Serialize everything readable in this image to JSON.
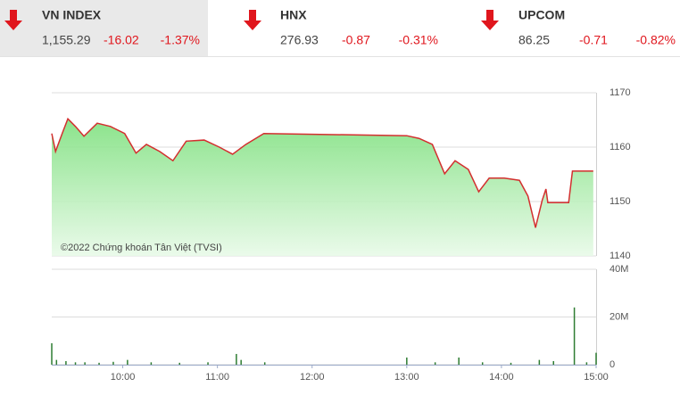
{
  "indices": [
    {
      "name": "VN INDEX",
      "value": "1,155.29",
      "change": "-16.02",
      "percent": "-1.37%"
    },
    {
      "name": "HNX",
      "value": "276.93",
      "change": "-0.87",
      "percent": "-0.31%"
    },
    {
      "name": "UPCOM",
      "value": "86.25",
      "change": "-0.71",
      "percent": "-0.82%"
    }
  ],
  "chart_data": [
    {
      "type": "line",
      "annotation": "©2022 Chứng khoán Tân Việt (TVSI)",
      "color": "#d32f2f",
      "x": [
        9.25,
        9.29,
        9.36,
        9.42,
        9.5,
        9.59,
        9.73,
        9.87,
        10.02,
        10.14,
        10.25,
        10.39,
        10.53,
        10.67,
        10.86,
        11.02,
        11.16,
        11.3,
        11.49,
        13.0,
        13.13,
        13.27,
        13.4,
        13.51,
        13.65,
        13.76,
        13.87,
        14.03,
        14.19,
        14.28,
        14.36,
        14.43,
        14.47,
        14.49,
        14.71,
        14.75,
        14.97
      ],
      "values": [
        1162.5,
        1159.2,
        1162.5,
        1165.2,
        1163.8,
        1162,
        1164.4,
        1163.8,
        1162.5,
        1158.9,
        1160.5,
        1159.2,
        1157.5,
        1161.1,
        1161.3,
        1160,
        1158.7,
        1160.5,
        1162.5,
        1162.1,
        1161.6,
        1160.5,
        1155.1,
        1157.5,
        1155.9,
        1151.8,
        1154.3,
        1154.3,
        1153.9,
        1151,
        1145.2,
        1150.2,
        1152.3,
        1149.8,
        1149.8,
        1155.6,
        1155.6
      ],
      "xlim": [
        9.25,
        15
      ],
      "ylim": [
        1140,
        1170
      ],
      "yticks": [
        1140,
        1150,
        1160,
        1170
      ],
      "grid": true
    },
    {
      "type": "bar",
      "color": "#2e7d32",
      "x": [
        9.25,
        9.3,
        9.4,
        9.5,
        9.6,
        9.75,
        9.9,
        10.05,
        10.3,
        10.6,
        10.9,
        11.2,
        11.25,
        11.5,
        13.0,
        13.3,
        13.55,
        13.8,
        14.1,
        14.4,
        14.55,
        14.77,
        14.9,
        15.0
      ],
      "values": [
        9000000,
        2000000,
        1500000,
        1000000,
        1000000,
        800000,
        1200000,
        2000000,
        1000000,
        800000,
        1000000,
        4500000,
        2000000,
        1000000,
        3000000,
        1000000,
        3000000,
        1000000,
        800000,
        2000000,
        1500000,
        24000000,
        1000000,
        5000000
      ],
      "xlim": [
        9.25,
        15
      ],
      "ylim": [
        0,
        40000000
      ],
      "yticks": [
        0,
        {
          "value": 20000000,
          "label": "20M"
        },
        {
          "value": 40000000,
          "label": "40M"
        }
      ],
      "xticks": [
        {
          "value": 10,
          "label": "10:00"
        },
        {
          "value": 11,
          "label": "11:00"
        },
        {
          "value": 12,
          "label": "12:00"
        },
        {
          "value": 13,
          "label": "13:00"
        },
        {
          "value": 14,
          "label": "14:00"
        },
        {
          "value": 15,
          "label": "15:00"
        }
      ],
      "grid": true
    }
  ]
}
